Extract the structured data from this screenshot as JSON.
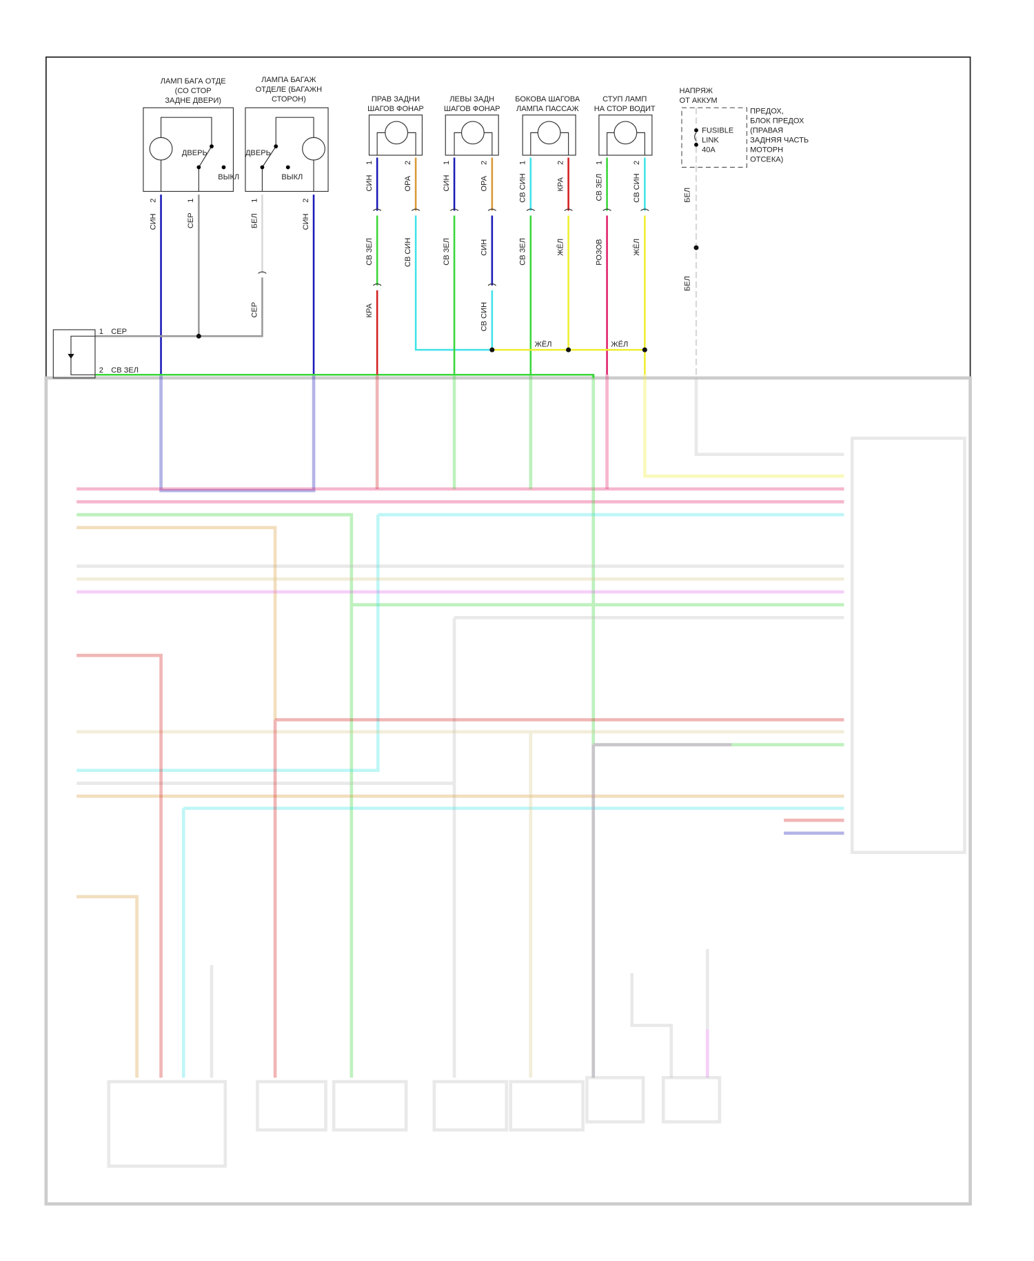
{
  "colors": {
    "blue": "#1a1ab8",
    "gray": "#9a9a9a",
    "white": "#d8d8d8",
    "green": "#3ad63a",
    "cyan": "#3fe3e8",
    "orange": "#d89a3a",
    "red": "#d42020",
    "yellow": "#eeee30",
    "pink": "#e0206a",
    "magenta": "#e070e8",
    "tan": "#d8c890"
  },
  "components": {
    "c1": {
      "title": [
        "ЛАМП БАГА ОТДЕ",
        "(СО СТОР",
        "ЗАДНЕ ДВЕРИ)"
      ],
      "door": "ДВЕРЬ",
      "off": "ВЫКЛ"
    },
    "c2": {
      "title": [
        "ЛАМПА БАГАЖ",
        "ОТДЕЛЕ (БАГАЖН",
        "СТОРОН)"
      ],
      "door": "ДВЕРЬ",
      "off": "ВЫКЛ"
    },
    "c3": {
      "title": [
        "ПРАВ ЗАДНИ",
        "ШАГОВ ФОНАР"
      ]
    },
    "c4": {
      "title": [
        "ЛЕВЫ ЗАДН",
        "ШАГОВ ФОНАР"
      ]
    },
    "c5": {
      "title": [
        "БОКОВА ШАГОВА",
        "ЛАМПА ПАССАЖ"
      ]
    },
    "c6": {
      "title": [
        "СТУП ЛАМП",
        "НА СТОР ВОДИТ"
      ]
    },
    "fuse": {
      "supply": [
        "НАПРЯЖ",
        "ОТ АККУМ"
      ],
      "link": [
        "FUSIBLE",
        "LINK",
        "40A"
      ],
      "block": [
        "ПРЕДОХ,",
        "БЛОК ПРЕДОХ",
        "(ПРАВАЯ",
        "ЗАДНЯЯ ЧАСТЬ",
        "МОТОРН",
        "ОТСЕКА)"
      ]
    }
  },
  "pins": {
    "one": "1",
    "two": "2"
  },
  "wires": [
    "СИН",
    "СЕР",
    "БЕЛ",
    "СИН",
    "СЕР",
    "СИН",
    "ОРА",
    "СВ ЗЕЛ",
    "СВ СИН",
    "КРА",
    "СИН",
    "ОРА",
    "СВ ЗЕЛ",
    "СИН",
    "СВ СИН",
    "СВ СИН",
    "КРА",
    "СВ ЗЕЛ",
    "ЖЁЛ",
    "СВ ЗЕЛ",
    "СВ СИН",
    "РОЗОВ",
    "ЖЁЛ",
    "ЖЁЛ",
    "ЖЁЛ",
    "БЕЛ",
    "БЕЛ",
    "СЕР",
    "СВ ЗЕЛ"
  ]
}
